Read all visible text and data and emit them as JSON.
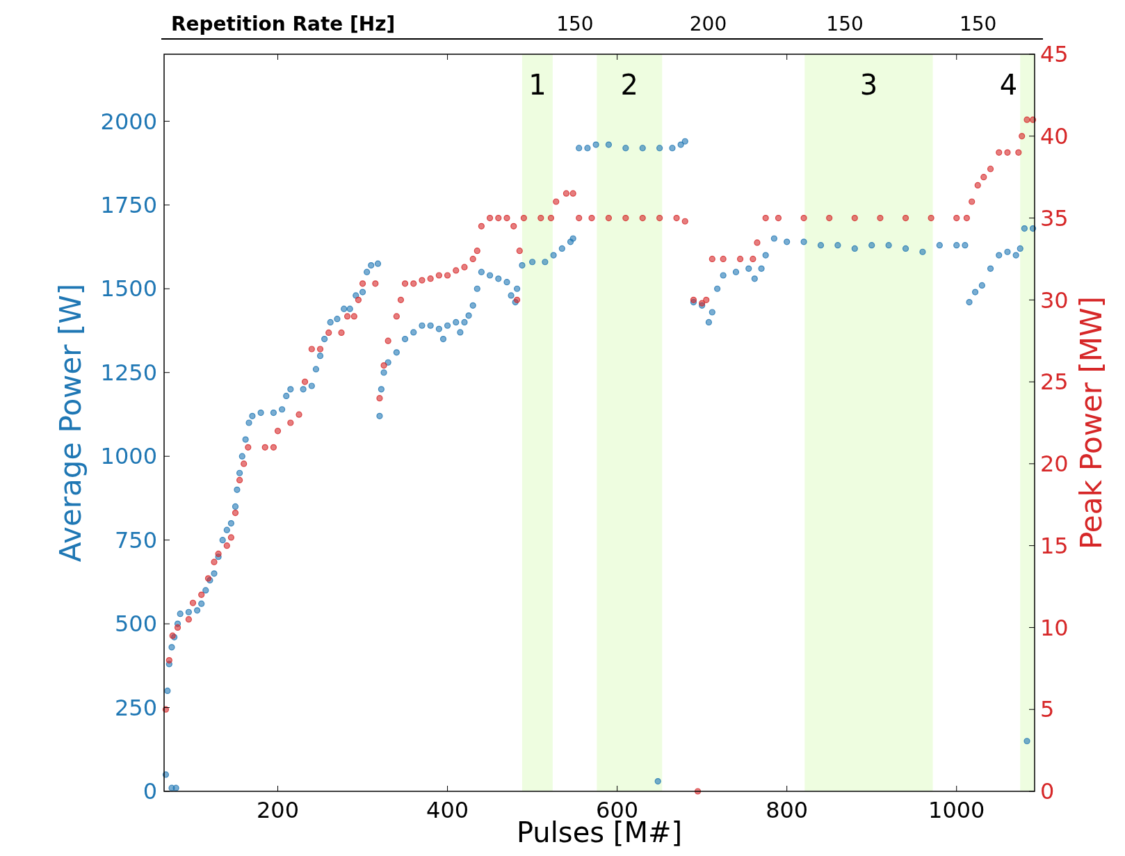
{
  "chart_data": {
    "type": "scatter",
    "xlabel": "Pulses [M#]",
    "ylabel": "Average Power [W]",
    "y2label": "Peak Power [MW]",
    "xlim": [
      66,
      1092
    ],
    "xticks": [
      200,
      400,
      600,
      800,
      1000
    ],
    "ylim": [
      0,
      2200
    ],
    "yticks": [
      0,
      250,
      500,
      750,
      1000,
      1250,
      1500,
      1750,
      2000
    ],
    "y2lim": [
      0,
      45
    ],
    "y2ticks": [
      0,
      5,
      10,
      15,
      20,
      25,
      30,
      35,
      40,
      45
    ],
    "marker": "circle",
    "grid": false,
    "annotations": [
      "Repetition Rate [Hz]",
      "150",
      "200",
      "150",
      "150"
    ],
    "bands": [
      {
        "axis": "x",
        "from": 488,
        "to": 524,
        "label": "1",
        "color": "#eefde0"
      },
      {
        "axis": "x",
        "from": 576,
        "to": 653,
        "label": "2",
        "color": "#eefde0"
      },
      {
        "axis": "x",
        "from": 821,
        "to": 972,
        "label": "3",
        "color": "#eefde0"
      },
      {
        "axis": "x",
        "from": 1075,
        "to": 1092,
        "label": "4",
        "color": "#eefde0"
      }
    ],
    "series": [
      {
        "color": "#1f77b4",
        "x": [
          68,
          75,
          80,
          70,
          72,
          75,
          78,
          82,
          85,
          95,
          105,
          110,
          115,
          120,
          125,
          130,
          135,
          140,
          145,
          150,
          152,
          155,
          158,
          162,
          166,
          170,
          180,
          195,
          205,
          210,
          215,
          230,
          240,
          245,
          250,
          255,
          262,
          270,
          278,
          285,
          292,
          300,
          305,
          310,
          318,
          320,
          322,
          325,
          330,
          340,
          350,
          360,
          370,
          380,
          390,
          395,
          400,
          410,
          415,
          420,
          425,
          430,
          435,
          440,
          450,
          460,
          470,
          475,
          480,
          482,
          488,
          500,
          515,
          525,
          535,
          545,
          548,
          555,
          565,
          575,
          590,
          610,
          630,
          650,
          665,
          675,
          680,
          690,
          700,
          708,
          712,
          718,
          725,
          740,
          755,
          762,
          770,
          775,
          785,
          800,
          820,
          840,
          860,
          880,
          900,
          920,
          940,
          960,
          980,
          1000,
          1010,
          1015,
          1022,
          1030,
          1040,
          1050,
          1060,
          1070,
          1075,
          1080,
          1090,
          648,
          1083
        ],
        "values": [
          50,
          10,
          10,
          300,
          380,
          430,
          460,
          500,
          530,
          535,
          540,
          560,
          600,
          630,
          650,
          700,
          750,
          780,
          800,
          850,
          900,
          950,
          1000,
          1050,
          1100,
          1120,
          1130,
          1130,
          1140,
          1180,
          1200,
          1200,
          1210,
          1260,
          1300,
          1350,
          1400,
          1410,
          1440,
          1440,
          1480,
          1490,
          1550,
          1570,
          1575,
          1120,
          1200,
          1250,
          1280,
          1310,
          1350,
          1370,
          1390,
          1390,
          1380,
          1350,
          1390,
          1400,
          1370,
          1400,
          1420,
          1450,
          1500,
          1550,
          1540,
          1530,
          1520,
          1480,
          1460,
          1500,
          1570,
          1580,
          1580,
          1600,
          1620,
          1640,
          1650,
          1920,
          1920,
          1930,
          1930,
          1920,
          1920,
          1920,
          1920,
          1930,
          1940,
          1460,
          1450,
          1400,
          1430,
          1500,
          1540,
          1550,
          1560,
          1530,
          1560,
          1600,
          1650,
          1640,
          1640,
          1630,
          1630,
          1620,
          1630,
          1630,
          1620,
          1610,
          1630,
          1630,
          1630,
          1460,
          1490,
          1510,
          1560,
          1600,
          1610,
          1600,
          1620,
          1680,
          1680,
          30,
          150
        ]
      },
      {
        "color": "#d62728",
        "axis": "y2",
        "x": [
          68,
          72,
          76,
          82,
          95,
          100,
          110,
          118,
          125,
          130,
          140,
          145,
          150,
          155,
          160,
          165,
          185,
          195,
          200,
          215,
          225,
          232,
          240,
          250,
          260,
          275,
          282,
          290,
          295,
          300,
          315,
          320,
          325,
          330,
          340,
          345,
          350,
          360,
          370,
          380,
          390,
          400,
          410,
          420,
          430,
          435,
          440,
          450,
          460,
          470,
          478,
          482,
          485,
          490,
          510,
          522,
          528,
          540,
          548,
          555,
          570,
          590,
          610,
          630,
          650,
          670,
          680,
          690,
          700,
          705,
          712,
          725,
          745,
          760,
          765,
          775,
          790,
          820,
          850,
          880,
          910,
          940,
          970,
          1000,
          1012,
          1018,
          1025,
          1032,
          1040,
          1050,
          1060,
          1073,
          1077,
          1083,
          1090,
          695
        ],
        "values": [
          5,
          8,
          9.5,
          10,
          10.5,
          11.5,
          12,
          13,
          14,
          14.5,
          15,
          15.5,
          17,
          19,
          20,
          21,
          21,
          21,
          22,
          22.5,
          23,
          25,
          27,
          27,
          28,
          28,
          29,
          29,
          30,
          31,
          31,
          24,
          26,
          27.5,
          29,
          30,
          31,
          31,
          31.2,
          31.3,
          31.5,
          31.5,
          31.8,
          32,
          32.5,
          33,
          34.5,
          35,
          35,
          35,
          34.5,
          30,
          33,
          35,
          35,
          35,
          36,
          36.5,
          36.5,
          35,
          35,
          35,
          35,
          35,
          35,
          35,
          34.8,
          30,
          29.8,
          30,
          32.5,
          32.5,
          32.5,
          32.5,
          33.5,
          35,
          35,
          35,
          35,
          35,
          35,
          35,
          35,
          35,
          35,
          36,
          37,
          37.5,
          38,
          39,
          39,
          39,
          40,
          41,
          41,
          0
        ]
      }
    ]
  }
}
